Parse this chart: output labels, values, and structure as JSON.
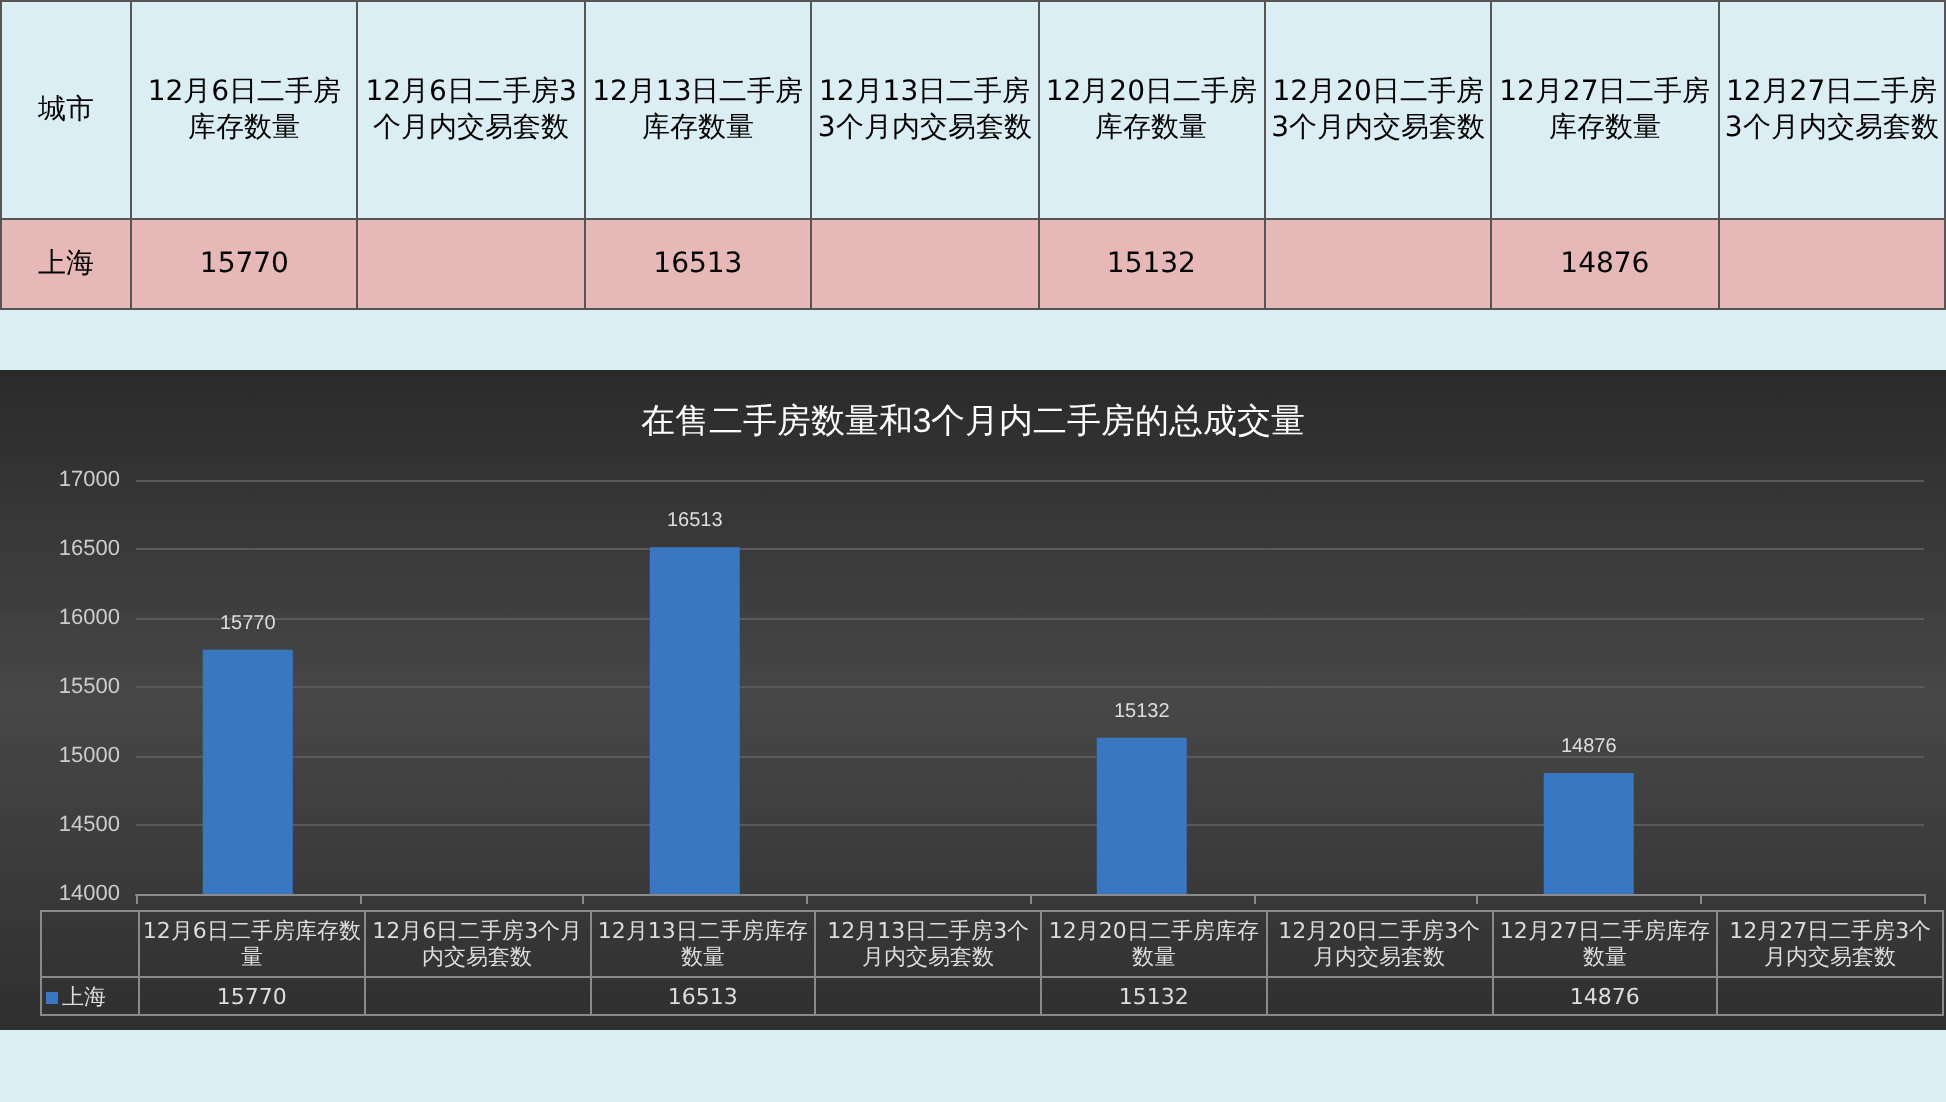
{
  "chart_data": {
    "type": "bar",
    "title": "在售二手房数量和3个月内二手房的总成交量",
    "legend_title": "城市",
    "categories": [
      "12月6日二手房库存数量",
      "12月6日二手房3个月内交易套数",
      "12月13日二手房库存数量",
      "12月13日二手房3个月内交易套数",
      "12月20日二手房库存数量",
      "12月20日二手房3个月内交易套数",
      "12月27日二手房库存数量",
      "12月27日二手房3个月内交易套数"
    ],
    "series": [
      {
        "name": "上海",
        "color": "#3a77c2",
        "values": [
          15770,
          null,
          16513,
          null,
          15132,
          null,
          14876,
          null
        ],
        "value_labels": [
          "15770",
          null,
          "16513",
          null,
          "15132",
          null,
          "14876",
          null
        ]
      }
    ],
    "ylim": [
      14000,
      17000
    ],
    "yticks": [
      14000,
      14500,
      15000,
      15500,
      16000,
      16500,
      17000
    ],
    "grid": "y",
    "legend": "bottom"
  }
}
